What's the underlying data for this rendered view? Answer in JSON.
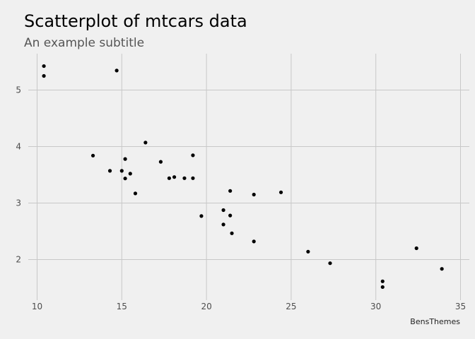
{
  "chart_data": {
    "type": "scatter",
    "title": "Scatterplot of mtcars data",
    "subtitle": "An example subtitle",
    "caption": "BensThemes",
    "xlabel": "",
    "ylabel": "",
    "xlim": [
      10,
      35
    ],
    "ylim": [
      1.35,
      5.6
    ],
    "x_ticks": [
      10,
      15,
      20,
      25,
      30,
      35
    ],
    "y_ticks": [
      2,
      3,
      4,
      5
    ],
    "grid": true,
    "legend": "none",
    "point_color": "#000000",
    "background_color": "#f0f0f0",
    "grid_color": "#c8c8c8",
    "points": [
      {
        "x": 10.4,
        "y": 5.424
      },
      {
        "x": 10.4,
        "y": 5.25
      },
      {
        "x": 14.7,
        "y": 5.345
      },
      {
        "x": 13.3,
        "y": 3.84
      },
      {
        "x": 14.3,
        "y": 3.57
      },
      {
        "x": 15.0,
        "y": 3.57
      },
      {
        "x": 15.2,
        "y": 3.78
      },
      {
        "x": 15.2,
        "y": 3.435
      },
      {
        "x": 15.5,
        "y": 3.52
      },
      {
        "x": 15.8,
        "y": 3.17
      },
      {
        "x": 16.4,
        "y": 4.07
      },
      {
        "x": 17.3,
        "y": 3.73
      },
      {
        "x": 17.8,
        "y": 3.44
      },
      {
        "x": 18.1,
        "y": 3.46
      },
      {
        "x": 18.7,
        "y": 3.44
      },
      {
        "x": 19.2,
        "y": 3.845
      },
      {
        "x": 19.2,
        "y": 3.44
      },
      {
        "x": 19.7,
        "y": 2.77
      },
      {
        "x": 21.0,
        "y": 2.875
      },
      {
        "x": 21.0,
        "y": 2.62
      },
      {
        "x": 21.4,
        "y": 3.215
      },
      {
        "x": 21.4,
        "y": 2.78
      },
      {
        "x": 21.5,
        "y": 2.465
      },
      {
        "x": 22.8,
        "y": 3.15
      },
      {
        "x": 22.8,
        "y": 2.32
      },
      {
        "x": 24.4,
        "y": 3.19
      },
      {
        "x": 26.0,
        "y": 2.14
      },
      {
        "x": 27.3,
        "y": 1.935
      },
      {
        "x": 30.4,
        "y": 1.615
      },
      {
        "x": 30.4,
        "y": 1.513
      },
      {
        "x": 32.4,
        "y": 2.2
      },
      {
        "x": 33.9,
        "y": 1.835
      }
    ]
  }
}
